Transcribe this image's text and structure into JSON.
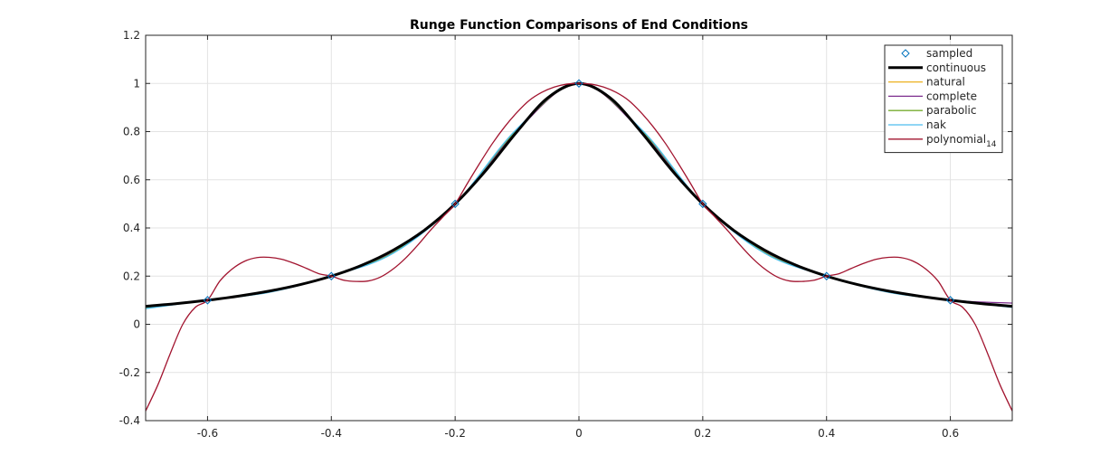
{
  "chart_data": {
    "type": "line",
    "title": "Runge Function Comparisons of End Conditions",
    "xlabel": "",
    "ylabel": "",
    "xlim": [
      -0.7,
      0.7
    ],
    "ylim": [
      -0.4,
      1.2
    ],
    "x_ticks": [
      "-0.6",
      "-0.4",
      "-0.2",
      "0",
      "0.2",
      "0.4",
      "0.6"
    ],
    "y_ticks": [
      "-0.4",
      "-0.2",
      "0",
      "0.2",
      "0.4",
      "0.6",
      "0.8",
      "1",
      "1.2"
    ],
    "grid": true,
    "legend_position": "top-right",
    "sampled": {
      "name": "sampled",
      "color": "#0072bd",
      "marker": "diamond",
      "x": [
        -0.6,
        -0.4,
        -0.2,
        0,
        0.2,
        0.4,
        0.6
      ],
      "y": [
        0.1,
        0.2,
        0.5,
        1.0,
        0.5,
        0.2,
        0.1
      ]
    },
    "series": [
      {
        "name": "continuous",
        "color": "#000000",
        "width": 3,
        "x": [
          -0.7,
          -0.65,
          -0.6,
          -0.55,
          -0.5,
          -0.45,
          -0.4,
          -0.35,
          -0.3,
          -0.25,
          -0.2,
          -0.15,
          -0.1,
          -0.05,
          0,
          0.05,
          0.1,
          0.15,
          0.2,
          0.25,
          0.3,
          0.35,
          0.4,
          0.45,
          0.5,
          0.55,
          0.6,
          0.65,
          0.7
        ],
        "y": [
          0.075,
          0.086,
          0.1,
          0.117,
          0.138,
          0.165,
          0.2,
          0.246,
          0.308,
          0.39,
          0.5,
          0.64,
          0.8,
          0.941,
          1.0,
          0.941,
          0.8,
          0.64,
          0.5,
          0.39,
          0.308,
          0.246,
          0.2,
          0.165,
          0.138,
          0.117,
          0.1,
          0.086,
          0.075
        ]
      },
      {
        "name": "natural",
        "color": "#edb120",
        "width": 1.3,
        "x": [
          -0.7,
          -0.6,
          -0.5,
          -0.4,
          -0.3,
          -0.2,
          -0.1,
          0,
          0.1,
          0.2,
          0.3,
          0.4,
          0.5,
          0.6,
          0.7
        ],
        "y": [
          0.072,
          0.1,
          0.136,
          0.2,
          0.3,
          0.5,
          0.805,
          1.0,
          0.805,
          0.5,
          0.3,
          0.2,
          0.136,
          0.1,
          0.072
        ]
      },
      {
        "name": "complete",
        "color": "#7e2f8e",
        "width": 1.3,
        "x": [
          -0.7,
          -0.6,
          -0.5,
          -0.4,
          -0.3,
          -0.2,
          -0.1,
          0,
          0.1,
          0.2,
          0.3,
          0.4,
          0.5,
          0.6,
          0.7
        ],
        "y": [
          0.07,
          0.1,
          0.137,
          0.2,
          0.301,
          0.5,
          0.803,
          1.0,
          0.803,
          0.5,
          0.301,
          0.2,
          0.137,
          0.1,
          0.088
        ]
      },
      {
        "name": "parabolic",
        "color": "#77ac30",
        "width": 1.3,
        "x": [
          -0.7,
          -0.6,
          -0.5,
          -0.4,
          -0.3,
          -0.2,
          -0.1,
          0,
          0.1,
          0.2,
          0.3,
          0.4,
          0.5,
          0.6,
          0.7
        ],
        "y": [
          0.068,
          0.1,
          0.134,
          0.2,
          0.298,
          0.5,
          0.808,
          1.0,
          0.808,
          0.5,
          0.298,
          0.2,
          0.134,
          0.1,
          0.076
        ]
      },
      {
        "name": "nak",
        "color": "#4dbeee",
        "width": 1.3,
        "x": [
          -0.7,
          -0.6,
          -0.5,
          -0.4,
          -0.3,
          -0.2,
          -0.1,
          0,
          0.1,
          0.2,
          0.3,
          0.4,
          0.5,
          0.6,
          0.7
        ],
        "y": [
          0.065,
          0.1,
          0.133,
          0.2,
          0.295,
          0.5,
          0.812,
          1.0,
          0.812,
          0.5,
          0.295,
          0.2,
          0.133,
          0.1,
          0.07
        ]
      },
      {
        "name": "polynomial",
        "name_sub": "14",
        "color": "#a2142f",
        "width": 1.3,
        "x": [
          -0.7,
          -0.68,
          -0.66,
          -0.64,
          -0.62,
          -0.6,
          -0.58,
          -0.56,
          -0.54,
          -0.52,
          -0.5,
          -0.48,
          -0.46,
          -0.44,
          -0.42,
          -0.4,
          -0.38,
          -0.36,
          -0.34,
          -0.32,
          -0.3,
          -0.28,
          -0.26,
          -0.24,
          -0.22,
          -0.2,
          -0.18,
          -0.16,
          -0.14,
          -0.12,
          -0.1,
          -0.08,
          -0.06,
          -0.04,
          -0.02,
          0,
          0.02,
          0.04,
          0.06,
          0.08,
          0.1,
          0.12,
          0.14,
          0.16,
          0.18,
          0.2,
          0.22,
          0.24,
          0.26,
          0.28,
          0.3,
          0.32,
          0.34,
          0.36,
          0.38,
          0.4,
          0.42,
          0.44,
          0.46,
          0.48,
          0.5,
          0.52,
          0.54,
          0.56,
          0.58,
          0.6,
          0.62,
          0.64,
          0.66,
          0.68,
          0.7
        ],
        "y": [
          -0.36,
          -0.25,
          -0.12,
          0.0,
          0.07,
          0.1,
          0.18,
          0.23,
          0.262,
          0.277,
          0.278,
          0.27,
          0.253,
          0.232,
          0.21,
          0.2,
          0.183,
          0.178,
          0.18,
          0.197,
          0.23,
          0.275,
          0.33,
          0.39,
          0.445,
          0.5,
          0.586,
          0.67,
          0.75,
          0.82,
          0.88,
          0.93,
          0.963,
          0.985,
          0.997,
          1.0,
          0.997,
          0.985,
          0.963,
          0.93,
          0.88,
          0.82,
          0.75,
          0.67,
          0.586,
          0.5,
          0.445,
          0.39,
          0.33,
          0.275,
          0.23,
          0.197,
          0.18,
          0.178,
          0.183,
          0.2,
          0.21,
          0.232,
          0.253,
          0.27,
          0.278,
          0.277,
          0.262,
          0.23,
          0.18,
          0.1,
          0.07,
          0.0,
          -0.12,
          -0.25,
          -0.36
        ]
      }
    ]
  }
}
